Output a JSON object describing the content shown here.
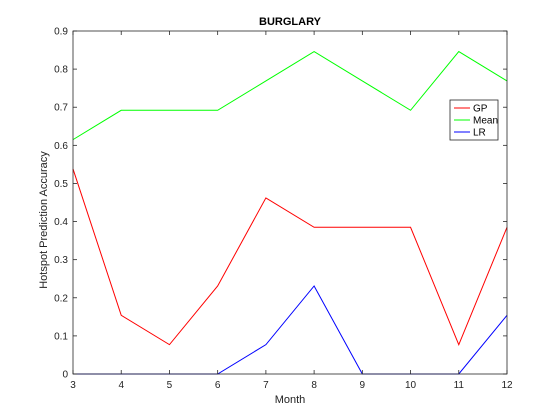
{
  "chart_data": {
    "type": "line",
    "title": "BURGLARY",
    "xlabel": "Month",
    "ylabel": "Hotspot Prediction Accuracy",
    "x": [
      3,
      4,
      5,
      6,
      7,
      8,
      9,
      10,
      11,
      12
    ],
    "xlim": [
      3,
      12
    ],
    "ylim": [
      0,
      0.9
    ],
    "xticks": [
      "3",
      "4",
      "5",
      "6",
      "7",
      "8",
      "9",
      "10",
      "11",
      "12"
    ],
    "yticks": [
      "0",
      "0.1",
      "0.2",
      "0.3",
      "0.4",
      "0.5",
      "0.6",
      "0.7",
      "0.8",
      "0.9"
    ],
    "grid": false,
    "legend_position": "top-right",
    "series": [
      {
        "name": "GP",
        "color": "#ff0000",
        "values": [
          0.538,
          0.154,
          0.077,
          0.231,
          0.462,
          0.385,
          0.385,
          0.385,
          0.077,
          0.385
        ]
      },
      {
        "name": "Mean",
        "color": "#00ff00",
        "values": [
          0.615,
          0.692,
          0.692,
          0.692,
          0.769,
          0.846,
          0.769,
          0.692,
          0.846,
          0.769
        ]
      },
      {
        "name": "LR",
        "color": "#0000ff",
        "values": [
          0.0,
          0.0,
          0.0,
          0.0,
          0.077,
          0.231,
          0.0,
          0.0,
          0.0,
          0.154
        ]
      }
    ]
  }
}
